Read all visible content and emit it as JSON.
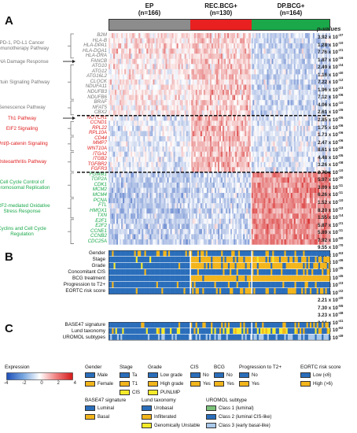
{
  "panels": {
    "a": "A",
    "b": "B",
    "c": "C"
  },
  "groups": [
    {
      "name": "EP",
      "n": "(n=166)",
      "color": "#8c8c8c"
    },
    {
      "name": "REC.BCG+",
      "n": "(n=130)",
      "color": "#e82020"
    },
    {
      "name": "DP.BCG+",
      "n": "(n=164)",
      "color": "#1aa84a"
    }
  ],
  "pvalue_header": "p-values",
  "genes": [
    {
      "name": "B2M",
      "color": "#777",
      "p": "3.92 x 10",
      "e": "-37"
    },
    {
      "name": "HLA-B",
      "color": "#777",
      "p": "1.28 x 10",
      "e": "-10"
    },
    {
      "name": "HLA-DPA1",
      "color": "#777",
      "p": "7.76 x 10",
      "e": "-21"
    },
    {
      "name": "HLA-DQA1",
      "color": "#777",
      "p": "1.87 x 10",
      "e": "-16"
    },
    {
      "name": "HLA-DRA",
      "color": "#777",
      "p": "2.49 x 10",
      "e": "-24"
    },
    {
      "name": "FANCB",
      "color": "#777",
      "p": "1.16 x 10",
      "e": "-40"
    },
    {
      "name": "ATG10",
      "color": "#777",
      "p": "7.22 x 10",
      "e": "-12"
    },
    {
      "name": "ATG12",
      "color": "#777",
      "p": "1.96 x 10",
      "e": "-23"
    },
    {
      "name": "ATG16L2",
      "color": "#777",
      "p": "7.12 x 10",
      "e": "-06"
    },
    {
      "name": "CLOCK",
      "color": "#777",
      "p": "4.06 x 10",
      "e": "-10"
    },
    {
      "name": "NDUFA11",
      "color": "#777",
      "p": "2.61 x 10",
      "e": "-26"
    },
    {
      "name": "NDUFB3",
      "color": "#777",
      "p": "2.85 x 10",
      "e": "-05"
    },
    {
      "name": "NDUFB6",
      "color": "#777",
      "p": "1.75 x 10",
      "e": "-06"
    },
    {
      "name": "BRAF",
      "color": "#777",
      "p": "1.73 x 10",
      "e": "-06"
    },
    {
      "name": "NFAT5",
      "color": "#777",
      "p": "2.47 x 10",
      "e": "-06"
    },
    {
      "name": "CBX2",
      "color": "#777",
      "p": "8.61 x 10",
      "e": "-18"
    },
    {
      "name": "NOTCH1",
      "color": "#e02020",
      "p": "4.48 x 10",
      "e": "-05"
    },
    {
      "name": "CCND1",
      "color": "#e02020",
      "p": "3.26 x 10",
      "e": "-08"
    },
    {
      "name": "RPL22",
      "color": "#e02020",
      "p": "2.73 x 10",
      "e": "-10"
    },
    {
      "name": "RPL10A",
      "color": "#e02020",
      "p": "5.97 x 10",
      "e": "-30"
    },
    {
      "name": "CD44",
      "color": "#e02020",
      "p": "3.09 x 10",
      "e": "-11"
    },
    {
      "name": "MMP7",
      "color": "#e02020",
      "p": "6.26 x 10",
      "e": "-11"
    },
    {
      "name": "WNT10A",
      "color": "#e02020",
      "p": "1.52 x 10",
      "e": "-10"
    },
    {
      "name": "ITGA2",
      "color": "#e02020",
      "p": "8.20 x 10",
      "e": "-12"
    },
    {
      "name": "ITGB2",
      "color": "#e02020",
      "p": "1.55 x 10",
      "e": "-14"
    },
    {
      "name": "TGFBR2",
      "color": "#e02020",
      "p": "5.87 x 10",
      "e": "-21"
    },
    {
      "name": "FGFR3",
      "color": "#e02020",
      "p": "5.89 x 10",
      "e": "-11"
    },
    {
      "name": "FGMM1",
      "color": "#1aa84a",
      "p": "7.92 x 10",
      "e": "-50"
    },
    {
      "name": "TOP2A",
      "color": "#1aa84a",
      "p": "9.55 x 10",
      "e": "-70"
    },
    {
      "name": "CDK1",
      "color": "#1aa84a",
      "p": "3.23 x 10",
      "e": "-63"
    },
    {
      "name": "MCM2",
      "color": "#1aa84a",
      "p": "3.94 x 10",
      "e": "-46"
    },
    {
      "name": "MCM4",
      "color": "#1aa84a",
      "p": "1.43 x 10",
      "e": "-35"
    },
    {
      "name": "PCNA",
      "color": "#1aa84a",
      "p": "4.79 x 10",
      "e": "-45"
    },
    {
      "name": "FTL",
      "color": "#1aa84a",
      "p": "4.54 x 10",
      "e": "-23"
    },
    {
      "name": "HMOX1",
      "color": "#1aa84a",
      "p": "2.28 x 10",
      "e": "-22"
    },
    {
      "name": "TXN",
      "color": "#1aa84a",
      "p": "2.21 x 10",
      "e": "-20"
    },
    {
      "name": "E2F1",
      "color": "#1aa84a",
      "p": "7.30 x 10",
      "e": "-55"
    },
    {
      "name": "E2F2",
      "color": "#1aa84a",
      "p": "3.23 x 10",
      "e": "-48"
    },
    {
      "name": "CCNE1",
      "color": "#1aa84a",
      "p": "3.16 x 10",
      "e": "-41"
    },
    {
      "name": "CCNB2",
      "color": "#1aa84a",
      "p": "3.23 x 10",
      "e": "-62"
    },
    {
      "name": "CDC25A",
      "color": "#1aa84a",
      "p": "1.73 x 10",
      "e": "-49"
    }
  ],
  "pathways": [
    {
      "lines": [
        "PD-1, PD-L1 Cancer",
        "Immunotherapy Pathway"
      ],
      "color": "#777"
    },
    {
      "lines": [
        "DNA Damage Response"
      ],
      "color": "#777"
    },
    {
      "lines": [
        "Sirtuin Signaling Pathway"
      ],
      "color": "#777"
    },
    {
      "lines": [
        "Senescence Pathway"
      ],
      "color": "#777"
    },
    {
      "lines": [
        "Th1 Pathway"
      ],
      "color": "#e02020"
    },
    {
      "lines": [
        "EIF2 Signaling"
      ],
      "color": "#e02020"
    },
    {
      "lines": [
        "Wnt/β-catenin Signaling"
      ],
      "color": "#e02020"
    },
    {
      "lines": [
        "Osteoarthritis Pathway"
      ],
      "color": "#e02020"
    },
    {
      "lines": [
        "Cell Cycle Control of",
        "Chromosomal Replication"
      ],
      "color": "#1aa84a"
    },
    {
      "lines": [
        "NRF2-mediated Oxidative",
        "Stress Response"
      ],
      "color": "#1aa84a"
    },
    {
      "lines": [
        "Cyclins and Cell Cycle",
        "Regulation"
      ],
      "color": "#1aa84a"
    }
  ],
  "clinical_rows": [
    "Gender",
    "Stage",
    "Grade",
    "Concomitant CIS",
    "BCG treatment",
    "Progression to T2+",
    "EORTC risk score"
  ],
  "subtype_rows": [
    "BASE47 signature",
    "Lund taxonomy",
    "UROMOL subtypes"
  ],
  "legend": {
    "expression": {
      "title": "Expression",
      "ticks": [
        "-4",
        "-2",
        "0",
        "2",
        "4"
      ]
    },
    "gender": {
      "title": "Gender",
      "items": [
        {
          "label": "Male",
          "color": "#2a6ebb"
        },
        {
          "label": "Female",
          "color": "#f2b51c"
        }
      ]
    },
    "stage": {
      "title": "Stage",
      "items": [
        {
          "label": "Ta",
          "color": "#2a6ebb"
        },
        {
          "label": "T1",
          "color": "#f2b51c"
        },
        {
          "label": "CIS",
          "color": "#f5ea2a"
        }
      ]
    },
    "grade": {
      "title": "Grade",
      "items": [
        {
          "label": "Low grade",
          "color": "#2a6ebb"
        },
        {
          "label": "High grade",
          "color": "#f2b51c"
        },
        {
          "label": "PUNLMP",
          "color": "#f5ea2a"
        }
      ]
    },
    "cis": {
      "title": "CIS",
      "items": [
        {
          "label": "No",
          "color": "#2a6ebb"
        },
        {
          "label": "Yes",
          "color": "#f2b51c"
        }
      ]
    },
    "bcg": {
      "title": "BCG",
      "items": [
        {
          "label": "No",
          "color": "#2a6ebb"
        },
        {
          "label": "Yes",
          "color": "#f2b51c"
        }
      ]
    },
    "progression": {
      "title": "Progression to T2+",
      "items": [
        {
          "label": "No",
          "color": "#2a6ebb"
        },
        {
          "label": "Yes",
          "color": "#f2b51c"
        }
      ]
    },
    "eortc": {
      "title": "EORTC risk score",
      "items": [
        {
          "label": "Low (≤6)",
          "color": "#2a6ebb"
        },
        {
          "label": "High (>6)",
          "color": "#f2b51c"
        }
      ]
    },
    "base47": {
      "title": "BASE47 signature",
      "items": [
        {
          "label": "Luminal",
          "color": "#2a6ebb"
        },
        {
          "label": "Basal",
          "color": "#f2b51c"
        }
      ]
    },
    "lund": {
      "title": "Lund taxonomy",
      "items": [
        {
          "label": "Urobasal",
          "color": "#2a6ebb"
        },
        {
          "label": "Infilterated",
          "color": "#f2b51c"
        },
        {
          "label": "Genomically Unstable",
          "color": "#f5ea2a"
        }
      ]
    },
    "uromol": {
      "title": "UROMOL subtype",
      "items": [
        {
          "label": "Class 1 (luminal)",
          "color": "#7cc27a"
        },
        {
          "label": "Class 2 (luminal CIS-like)",
          "color": "#2a6ebb"
        },
        {
          "label": "Class 3 (early basal-like)",
          "color": "#a9c8ea"
        }
      ]
    }
  }
}
